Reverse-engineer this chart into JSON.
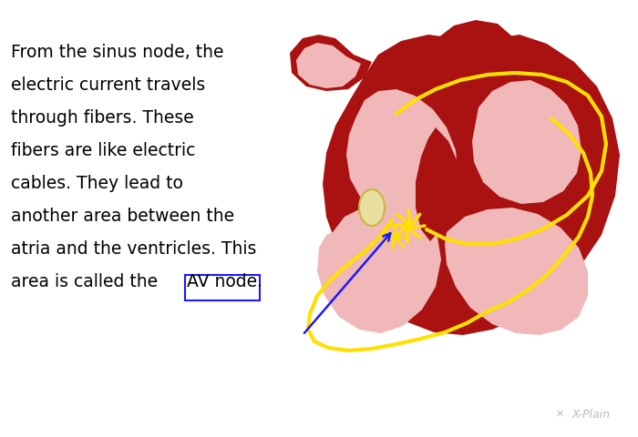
{
  "bg_color": "#ffffff",
  "text_lines": [
    "From the sinus node, the",
    "electric current travels",
    "through fibers. These",
    "fibers are like electric",
    "cables. They lead to",
    "another area between the",
    "atria and the ventricles. This",
    "area is called the "
  ],
  "text_highlight": "AV node.",
  "text_fontsize": 13.5,
  "text_color": "#000000",
  "highlight_box_color": "#1a1aff",
  "arrow_color": "#1a1aff",
  "heart_dark": "#aa1111",
  "heart_pink": "#f0b8b8",
  "heart_dark2": "#991111",
  "yellow_fiber": "#FFE000",
  "av_node_fill": "#e8e0a0",
  "spark_color": "#FFE000",
  "watermark": "X-Plain",
  "watermark_color": "#bbbbbb"
}
